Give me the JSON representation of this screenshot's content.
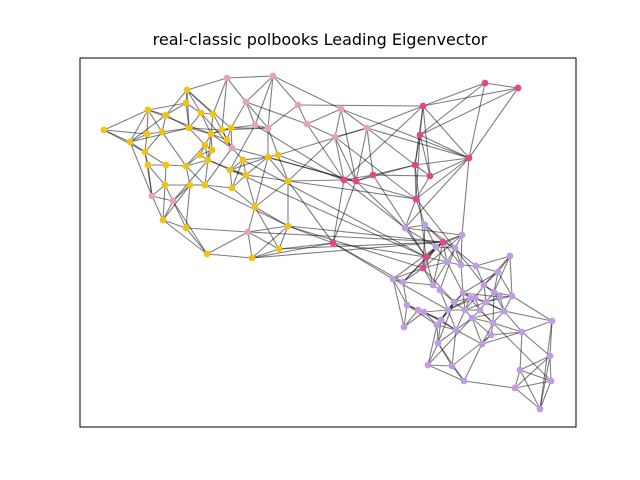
{
  "title": "real-classic polbooks Leading Eigenvector",
  "colors": {
    "yellow": "#f1c40f",
    "pink": "#e8a1bd",
    "magenta": "#e5448e",
    "lavender": "#c09ce5",
    "edge": "#000000",
    "frame": "#000000"
  },
  "graph": {
    "communities": [
      {
        "id": "c1",
        "color": "yellow"
      },
      {
        "id": "c2",
        "color": "pink"
      },
      {
        "id": "c3",
        "color": "magenta"
      },
      {
        "id": "c4",
        "color": "lavender"
      }
    ]
  }
}
